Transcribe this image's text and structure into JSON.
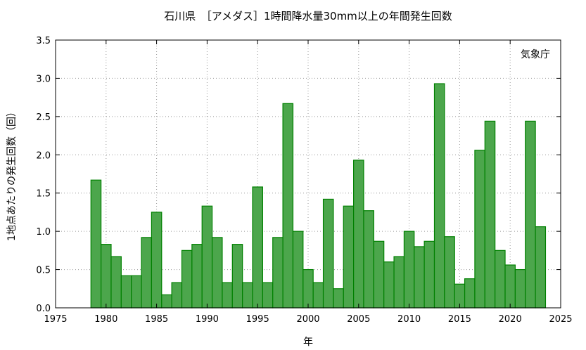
{
  "chart_data": {
    "type": "bar",
    "title": "石川県　［アメダス］1時間降水量30mm以上の年間発生回数",
    "source_label": "気象庁",
    "xlabel": "年",
    "ylabel": "1地点あたりの発生回数（回）",
    "xlim": [
      1975,
      2025
    ],
    "ylim": [
      0,
      3.5
    ],
    "x_ticks": [
      1975,
      1980,
      1985,
      1990,
      1995,
      2000,
      2005,
      2010,
      2015,
      2020,
      2025
    ],
    "y_ticks": [
      "0.0",
      "0.5",
      "1.0",
      "1.5",
      "2.0",
      "2.5",
      "3.0",
      "3.5"
    ],
    "grid": true,
    "bar_color": "#4ca64c",
    "bar_edge_color": "#008000",
    "x": [
      1979,
      1980,
      1981,
      1982,
      1983,
      1984,
      1985,
      1986,
      1987,
      1988,
      1989,
      1990,
      1991,
      1992,
      1993,
      1994,
      1995,
      1996,
      1997,
      1998,
      1999,
      2000,
      2001,
      2002,
      2003,
      2004,
      2005,
      2006,
      2007,
      2008,
      2009,
      2010,
      2011,
      2012,
      2013,
      2014,
      2015,
      2016,
      2017,
      2018,
      2019,
      2020,
      2021,
      2022,
      2023
    ],
    "values": [
      1.67,
      0.83,
      0.67,
      0.42,
      0.42,
      0.92,
      1.25,
      0.17,
      0.33,
      0.75,
      0.83,
      1.33,
      0.92,
      0.33,
      0.83,
      0.33,
      1.58,
      0.33,
      0.92,
      2.67,
      1.0,
      0.5,
      0.33,
      1.42,
      0.25,
      1.33,
      1.93,
      1.27,
      0.87,
      0.6,
      0.67,
      1.0,
      0.8,
      0.87,
      2.93,
      0.93,
      0.31,
      0.38,
      2.06,
      2.44,
      0.75,
      0.56,
      0.5,
      2.44,
      1.06
    ]
  }
}
